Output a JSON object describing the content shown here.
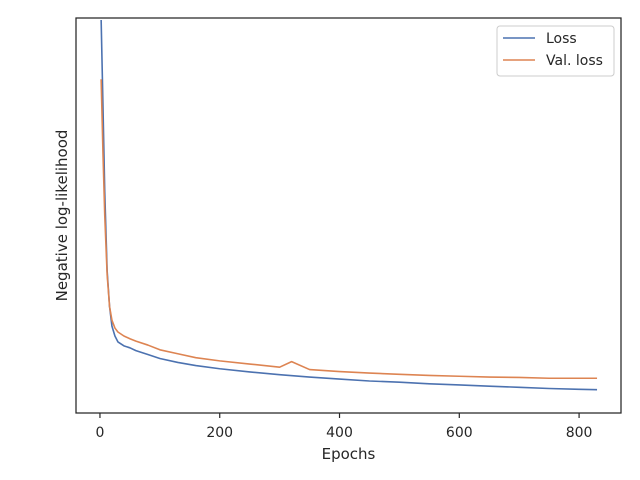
{
  "chart_data": {
    "type": "line",
    "title": "",
    "xlabel": "Epochs",
    "ylabel": "Negative log-likelihood",
    "xlim": [
      -40,
      870
    ],
    "ylim": [
      0,
      1
    ],
    "xticks": [
      0,
      200,
      400,
      600,
      800
    ],
    "yticks_visible": false,
    "grid": false,
    "legend_position": "top-right",
    "series": [
      {
        "name": "Loss",
        "color": "#4c72b0",
        "x": [
          2,
          5,
          8,
          12,
          16,
          20,
          25,
          30,
          40,
          50,
          60,
          80,
          100,
          130,
          160,
          200,
          250,
          300,
          350,
          400,
          450,
          500,
          550,
          600,
          650,
          700,
          750,
          800,
          830
        ],
        "y": [
          0.995,
          0.78,
          0.56,
          0.36,
          0.27,
          0.22,
          0.195,
          0.18,
          0.17,
          0.165,
          0.158,
          0.148,
          0.138,
          0.128,
          0.12,
          0.112,
          0.104,
          0.097,
          0.091,
          0.086,
          0.081,
          0.078,
          0.074,
          0.071,
          0.068,
          0.065,
          0.062,
          0.06,
          0.059
        ]
      },
      {
        "name": "Val. loss",
        "color": "#dd8452",
        "x": [
          2,
          5,
          8,
          12,
          16,
          20,
          25,
          30,
          40,
          50,
          60,
          80,
          100,
          130,
          160,
          200,
          250,
          300,
          320,
          350,
          400,
          450,
          500,
          550,
          600,
          650,
          700,
          750,
          800,
          830
        ],
        "y": [
          0.845,
          0.66,
          0.5,
          0.35,
          0.27,
          0.235,
          0.215,
          0.205,
          0.195,
          0.188,
          0.182,
          0.172,
          0.16,
          0.15,
          0.14,
          0.132,
          0.124,
          0.116,
          0.13,
          0.11,
          0.105,
          0.101,
          0.098,
          0.095,
          0.093,
          0.091,
          0.09,
          0.088,
          0.088,
          0.088
        ]
      }
    ]
  }
}
